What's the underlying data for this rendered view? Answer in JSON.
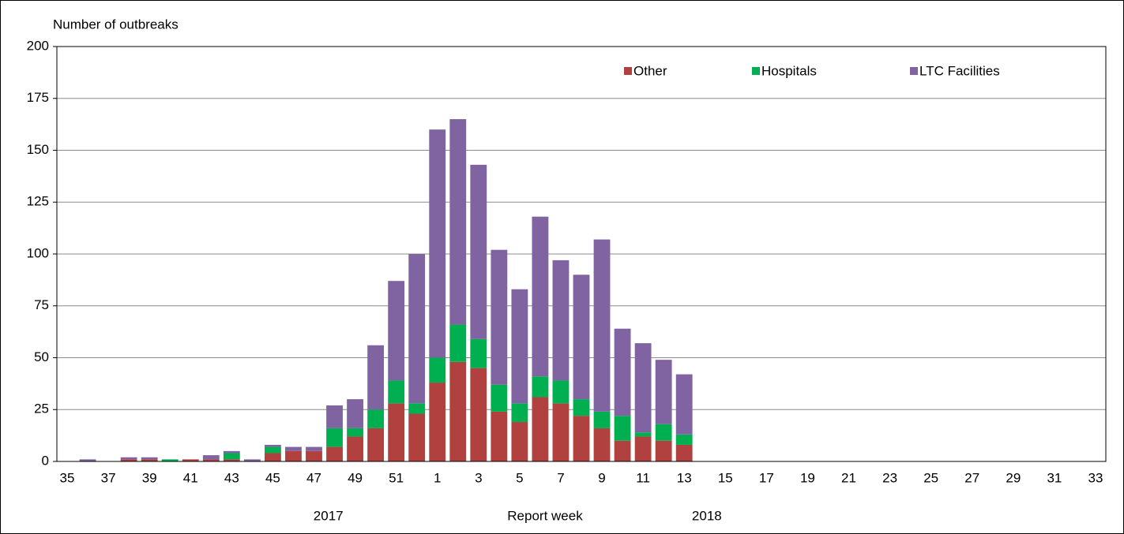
{
  "chart_data": {
    "type": "bar",
    "stacked": true,
    "y_label": "Number of outbreaks",
    "x_label": "Report week",
    "year_labels": [
      "2017",
      "2018"
    ],
    "categories": [
      "35",
      null,
      "37",
      null,
      "39",
      null,
      "41",
      null,
      "43",
      null,
      "45",
      null,
      "47",
      null,
      "49",
      null,
      "51",
      null,
      "1",
      null,
      "3",
      null,
      "5",
      null,
      "7",
      null,
      "9",
      null,
      "11",
      null,
      "13",
      null,
      "15",
      null,
      "17",
      null,
      "19",
      null,
      "21",
      null,
      "23",
      null,
      "25",
      null,
      "27",
      null,
      "29",
      null,
      "31",
      null,
      "33"
    ],
    "series": [
      {
        "name": "Other",
        "color": "#b0413e",
        "values": [
          0,
          0,
          0,
          1,
          1,
          0,
          1,
          1,
          1,
          0,
          4,
          5,
          5,
          7,
          12,
          16,
          28,
          23,
          38,
          48,
          45,
          24,
          19,
          31,
          28,
          22,
          16,
          10,
          12,
          10,
          8,
          0,
          0,
          0,
          0,
          0,
          0,
          0,
          0,
          0,
          0,
          0,
          0,
          0,
          0,
          0,
          0,
          0,
          0,
          0,
          0
        ]
      },
      {
        "name": "Hospitals",
        "color": "#00b050",
        "values": [
          0,
          0,
          0,
          0,
          0,
          1,
          0,
          0,
          3,
          0,
          3,
          0,
          0,
          9,
          4,
          9,
          11,
          5,
          12,
          18,
          14,
          13,
          9,
          10,
          11,
          8,
          8,
          12,
          2,
          8,
          5,
          0,
          0,
          0,
          0,
          0,
          0,
          0,
          0,
          0,
          0,
          0,
          0,
          0,
          0,
          0,
          0,
          0,
          0,
          0,
          0
        ]
      },
      {
        "name": "LTC Facilities",
        "color": "#8064a2",
        "values": [
          0,
          1,
          0,
          1,
          1,
          0,
          0,
          2,
          1,
          1,
          1,
          2,
          2,
          11,
          14,
          31,
          48,
          72,
          110,
          99,
          84,
          65,
          55,
          77,
          58,
          60,
          83,
          42,
          43,
          31,
          29,
          0,
          0,
          0,
          0,
          0,
          0,
          0,
          0,
          0,
          0,
          0,
          0,
          0,
          0,
          0,
          0,
          0,
          0,
          0,
          0
        ]
      }
    ],
    "ylim": [
      0,
      200
    ],
    "yticks": [
      0,
      25,
      50,
      75,
      100,
      125,
      150,
      175,
      200
    ],
    "grid": true,
    "legend": "top-right"
  }
}
